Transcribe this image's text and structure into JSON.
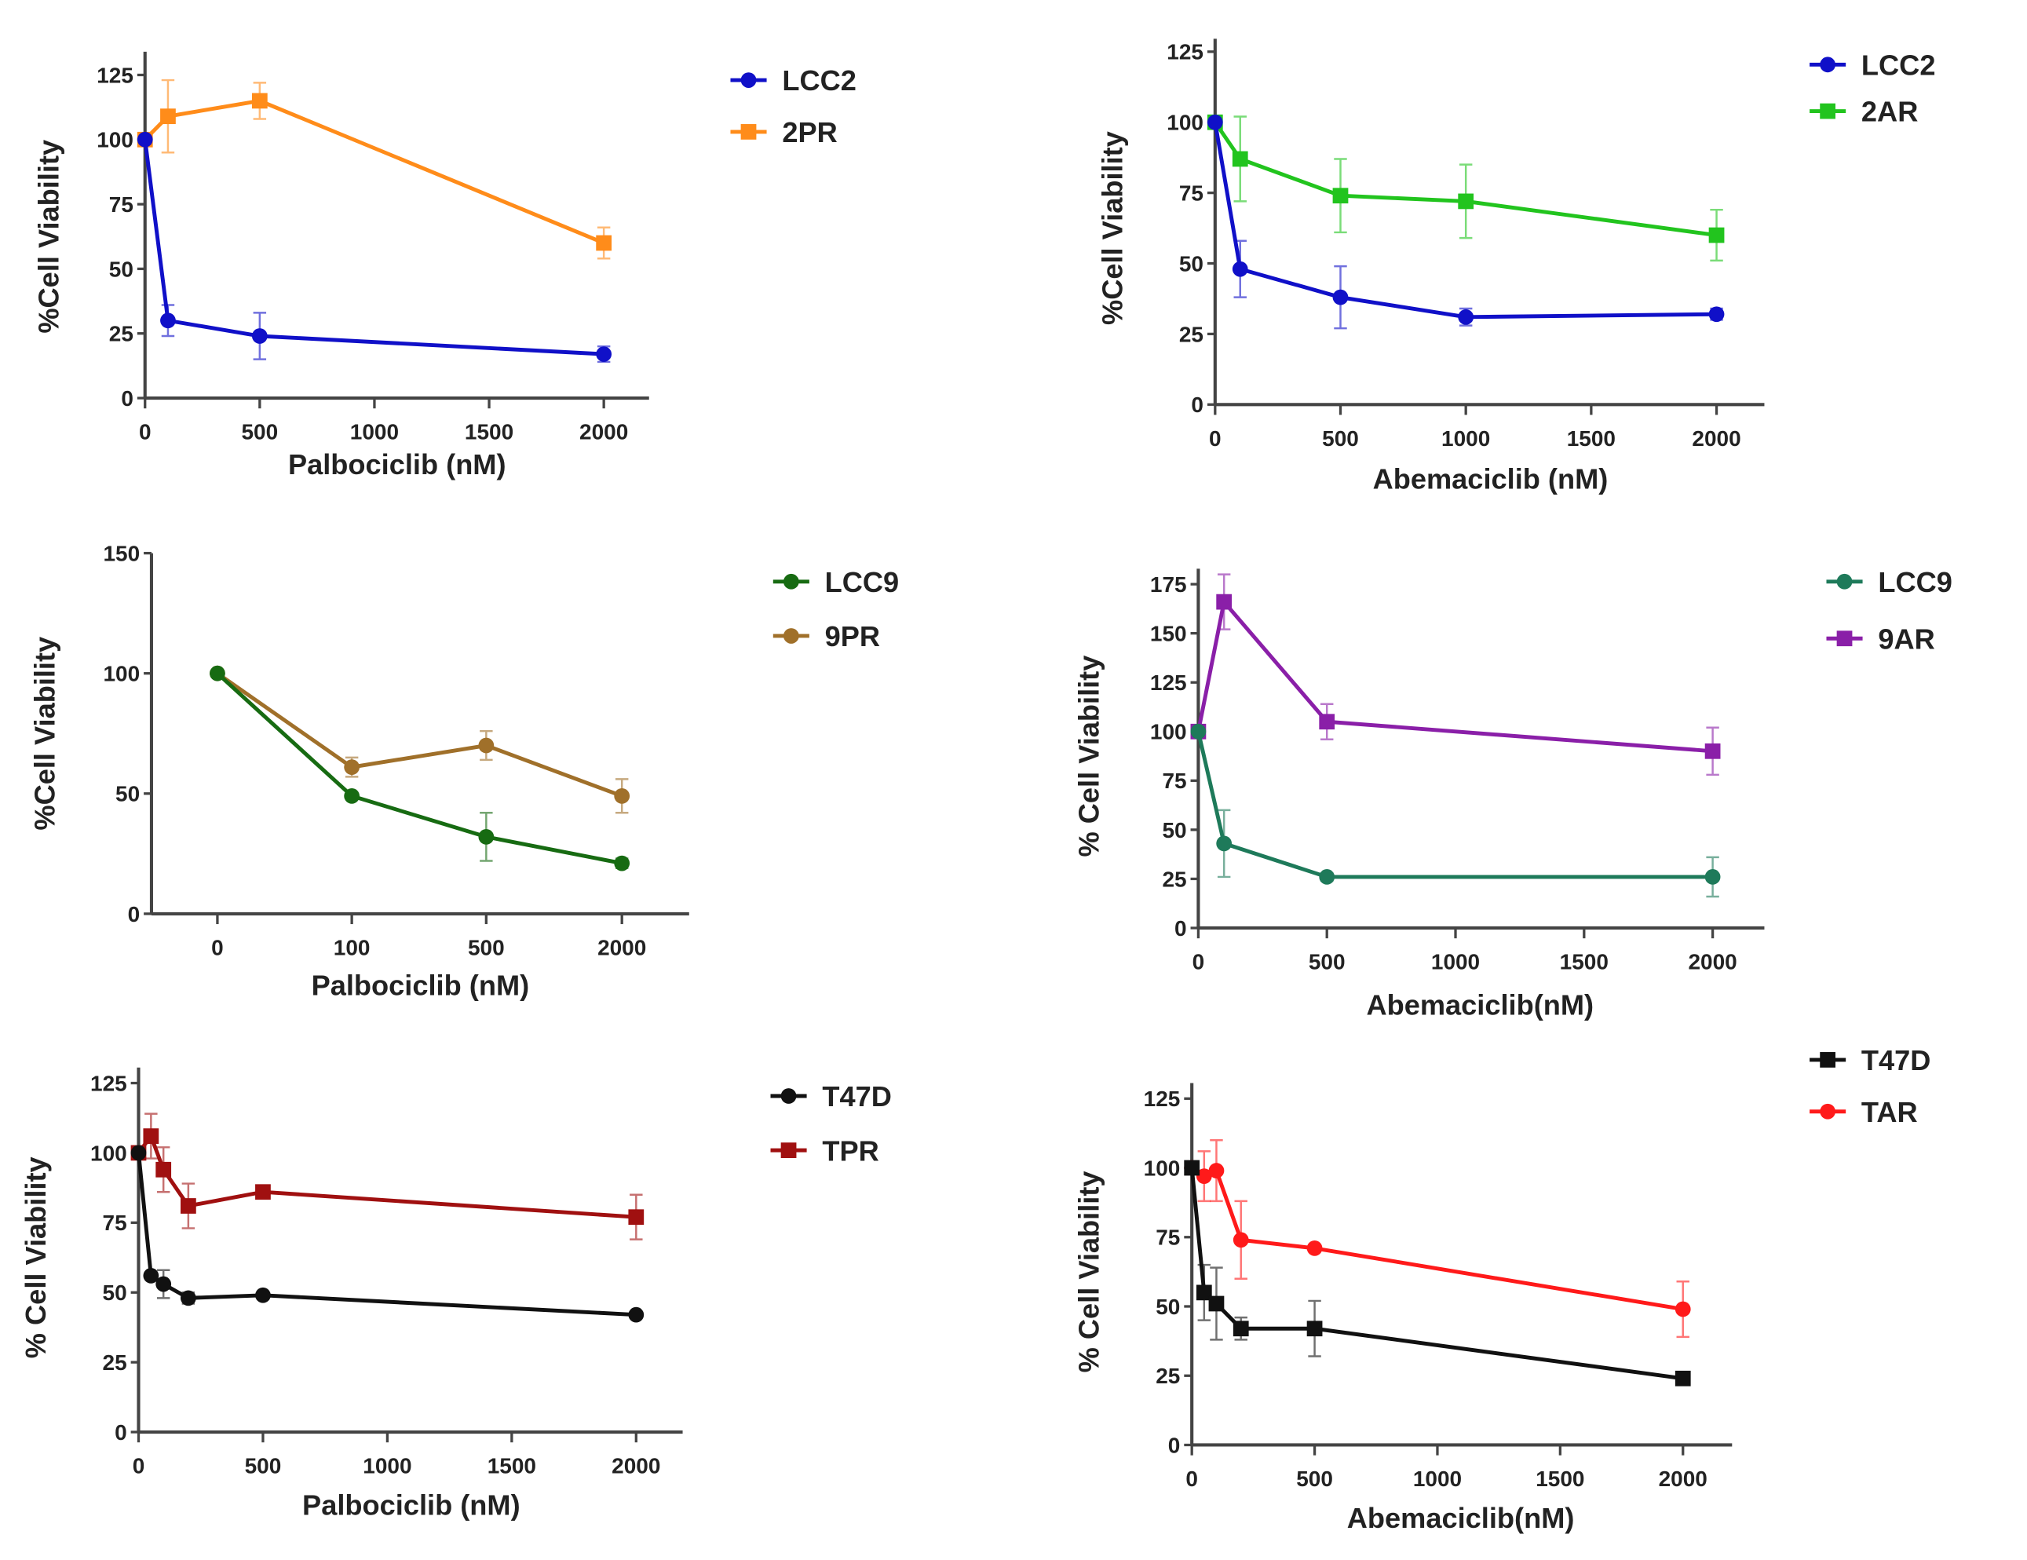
{
  "chart_data": [
    {
      "type": "line",
      "xlabel": "Palbociclib (nM)",
      "ylabel": "%Cell Viability",
      "ylim": [
        0,
        125
      ],
      "yticks": [
        0,
        25,
        50,
        75,
        100,
        125
      ],
      "xlim": [
        0,
        2000
      ],
      "xticks": [
        0,
        500,
        1000,
        1500,
        2000
      ],
      "legend": "right",
      "series": [
        {
          "name": "LCC2",
          "color": "#1010c8",
          "marker": "circle",
          "x": [
            0,
            100,
            500,
            2000
          ],
          "y": [
            100,
            30,
            24,
            17
          ],
          "err": [
            0,
            6,
            9,
            3
          ]
        },
        {
          "name": "2PR",
          "color": "#ff8c1a",
          "marker": "square",
          "x": [
            0,
            100,
            500,
            2000
          ],
          "y": [
            100,
            109,
            115,
            60
          ],
          "err": [
            0,
            14,
            7,
            6
          ]
        }
      ]
    },
    {
      "type": "line",
      "xlabel": "Abemaciclib (nM)",
      "ylabel": "%Cell Viability",
      "ylim": [
        0,
        125
      ],
      "yticks": [
        0,
        25,
        50,
        75,
        100,
        125
      ],
      "xlim": [
        0,
        2000
      ],
      "xticks": [
        0,
        500,
        1000,
        1500,
        2000
      ],
      "legend": "right",
      "series": [
        {
          "name": "LCC2",
          "color": "#1010c8",
          "marker": "circle",
          "x": [
            0,
            100,
            500,
            1000,
            2000
          ],
          "y": [
            100,
            48,
            38,
            31,
            32
          ],
          "err": [
            0,
            10,
            11,
            3,
            2
          ]
        },
        {
          "name": "2AR",
          "color": "#22c41e",
          "marker": "square",
          "x": [
            0,
            100,
            500,
            1000,
            2000
          ],
          "y": [
            100,
            87,
            74,
            72,
            60
          ],
          "err": [
            0,
            15,
            13,
            13,
            9
          ]
        }
      ]
    },
    {
      "type": "line",
      "xlabel": "Palbociclib (nM)",
      "ylabel": "%Cell Viability",
      "ylim": [
        0,
        150
      ],
      "yticks": [
        0,
        50,
        100,
        150
      ],
      "categories": [
        "0",
        "100",
        "500",
        "2000"
      ],
      "legend": "right",
      "series": [
        {
          "name": "LCC9",
          "color": "#176b12",
          "marker": "circle",
          "y": [
            100,
            49,
            32,
            21
          ],
          "err": [
            0,
            0,
            10,
            2
          ]
        },
        {
          "name": "9PR",
          "color": "#a0702a",
          "marker": "circle",
          "y": [
            100,
            61,
            70,
            49
          ],
          "err": [
            0,
            4,
            6,
            7
          ]
        }
      ]
    },
    {
      "type": "line",
      "xlabel": "Abemaciclib(nM)",
      "ylabel": "% Cell Viability",
      "ylim": [
        0,
        175
      ],
      "yticks": [
        0,
        25,
        50,
        75,
        100,
        125,
        150,
        175
      ],
      "xlim": [
        0,
        2000
      ],
      "xticks": [
        0,
        500,
        1000,
        1500,
        2000
      ],
      "legend": "right",
      "series": [
        {
          "name": "LCC9",
          "color": "#1e7a5a",
          "marker": "circle",
          "x": [
            0,
            100,
            500,
            2000
          ],
          "y": [
            100,
            43,
            26,
            26
          ],
          "err": [
            0,
            17,
            2,
            10
          ]
        },
        {
          "name": "9AR",
          "color": "#8a1fa8",
          "marker": "square",
          "x": [
            0,
            100,
            500,
            2000
          ],
          "y": [
            100,
            166,
            105,
            90
          ],
          "err": [
            0,
            14,
            9,
            12
          ]
        }
      ]
    },
    {
      "type": "line",
      "xlabel": "Palbociclib (nM)",
      "ylabel": "% Cell Viability",
      "ylim": [
        0,
        125
      ],
      "yticks": [
        0,
        25,
        50,
        75,
        100,
        125
      ],
      "xlim": [
        0,
        2000
      ],
      "xticks": [
        0,
        500,
        1000,
        1500,
        2000
      ],
      "legend": "right",
      "series": [
        {
          "name": "T47D",
          "color": "#111111",
          "marker": "circle",
          "x": [
            0,
            50,
            100,
            200,
            500,
            2000
          ],
          "y": [
            100,
            56,
            53,
            48,
            49,
            42
          ],
          "err": [
            0,
            0,
            5,
            2,
            1,
            1
          ]
        },
        {
          "name": "TPR",
          "color": "#a01010",
          "marker": "square",
          "x": [
            0,
            50,
            100,
            200,
            500,
            2000
          ],
          "y": [
            100,
            106,
            94,
            81,
            86,
            77
          ],
          "err": [
            0,
            8,
            8,
            8,
            1,
            8
          ]
        }
      ]
    },
    {
      "type": "line",
      "xlabel": "Abemaciclib(nM)",
      "ylabel": "% Cell Viability",
      "ylim": [
        0,
        125
      ],
      "yticks": [
        0,
        25,
        50,
        75,
        100,
        125
      ],
      "xlim": [
        0,
        2000
      ],
      "xticks": [
        0,
        500,
        1000,
        1500,
        2000
      ],
      "legend": "top-right",
      "series": [
        {
          "name": "T47D",
          "color": "#111111",
          "marker": "square",
          "x": [
            0,
            50,
            100,
            200,
            500,
            2000
          ],
          "y": [
            100,
            55,
            51,
            42,
            42,
            24
          ],
          "err": [
            0,
            10,
            13,
            4,
            10,
            1
          ]
        },
        {
          "name": "TAR",
          "color": "#ff1a1a",
          "marker": "circle",
          "x": [
            0,
            50,
            100,
            200,
            500,
            2000
          ],
          "y": [
            100,
            97,
            99,
            74,
            71,
            49
          ],
          "err": [
            0,
            9,
            11,
            14,
            1,
            10
          ]
        }
      ]
    }
  ]
}
